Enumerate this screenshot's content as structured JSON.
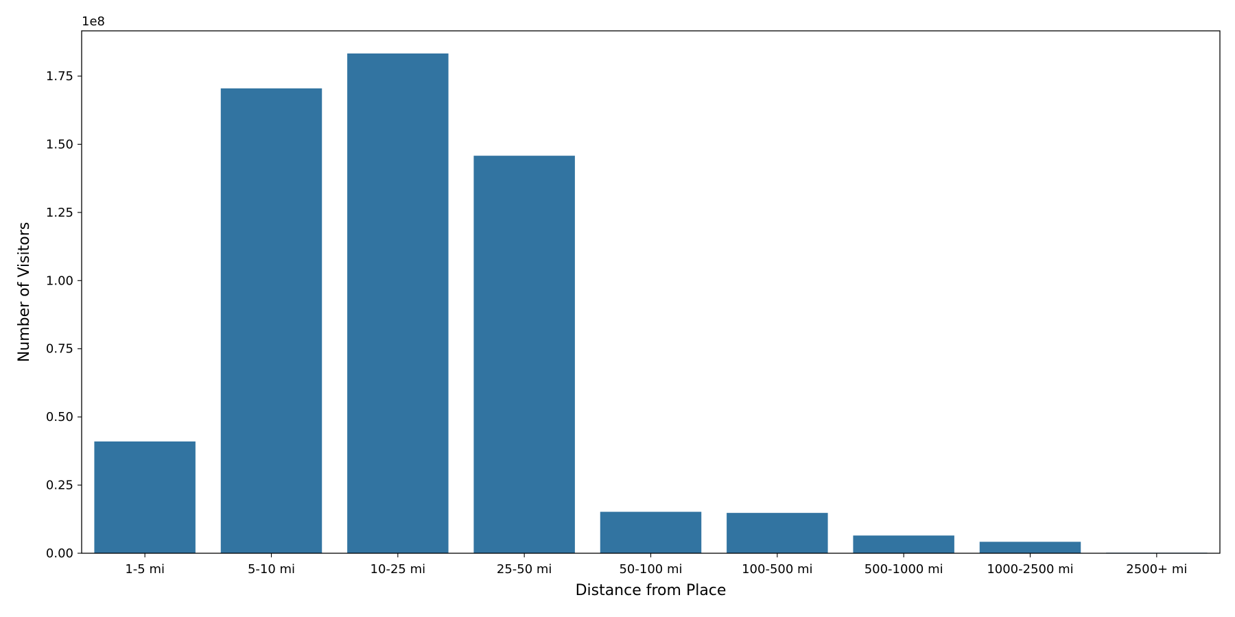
{
  "chart_data": {
    "type": "bar",
    "categories": [
      "1-5 mi",
      "5-10 mi",
      "10-25 mi",
      "25-50 mi",
      "50-100 mi",
      "100-500 mi",
      "500-1000 mi",
      "1000-2500 mi",
      "2500+ mi"
    ],
    "values": [
      41000000,
      170500000,
      183300000,
      145800000,
      15200000,
      14800000,
      6500000,
      4200000,
      200000
    ],
    "xlabel": "Distance from Place",
    "ylabel": "Number of Visitors",
    "y_offset_label": "1e8",
    "y_scale": 100000000,
    "ylim": [
      0,
      191600000
    ],
    "yticks": [
      0,
      0.25,
      0.5,
      0.75,
      1.0,
      1.25,
      1.5,
      1.75
    ],
    "ytick_labels": [
      "0.00",
      "0.25",
      "0.50",
      "0.75",
      "1.00",
      "1.25",
      "1.50",
      "1.75"
    ],
    "bar_color": "#3274a1",
    "grid": false,
    "legend": "none"
  }
}
